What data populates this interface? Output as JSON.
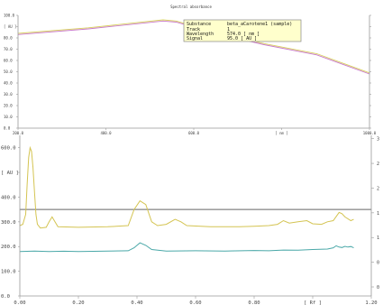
{
  "chart_data": [
    {
      "type": "line",
      "title": "Spectral absorbance",
      "ylabel": "[ AU ]",
      "xlabel": "",
      "xlim": [
        200.0,
        1000.0
      ],
      "ylim": [
        0,
        100
      ],
      "y_ticks": [
        "100.0",
        "[ AU ]",
        "80.0",
        "70.0",
        "60.0",
        "50.0",
        "40.0",
        "30.0",
        "20.0",
        "10.0",
        "0.0"
      ],
      "x_ticks": [
        "200.0",
        "400.0",
        "600.0",
        "[ nm ]",
        "1000.0"
      ],
      "grid": false,
      "series": [
        {
          "values": [
            [
              200,
              83
            ],
            [
              360,
              88
            ],
            [
              530,
              95
            ],
            [
              560,
              94
            ],
            [
              640,
              85
            ],
            [
              760,
              74
            ],
            [
              880,
              65
            ],
            [
              1000,
              48
            ]
          ],
          "color": "#c878c8"
        },
        {
          "values": [
            [
              200,
              84
            ],
            [
              360,
              89
            ],
            [
              530,
              96
            ],
            [
              560,
              95
            ],
            [
              640,
              86
            ],
            [
              760,
              75
            ],
            [
              880,
              66
            ],
            [
              1000,
              49
            ]
          ],
          "color": "#d8d060"
        }
      ],
      "info_box": {
        "rows": [
          {
            "label": "Substance",
            "value": "beta_aCarotene1 (sample)"
          },
          {
            "label": "Track",
            "value": "1"
          },
          {
            "label": "Wavelength",
            "value": "574.0 [ nm ]"
          },
          {
            "label": "Signal",
            "value": "95.0 [ AU ]"
          }
        ]
      }
    },
    {
      "type": "line",
      "title": "",
      "ylabel": "[ AU ]",
      "xlabel": "[ Rf ]",
      "xlim": [
        0.0,
        1.2
      ],
      "ylim": [
        0,
        650
      ],
      "y_ticks": [
        "600.0",
        "[ AU ]",
        "400.0",
        "300.0",
        "200.0",
        "100.0",
        "0.0"
      ],
      "x_ticks": [
        "0.00",
        "0.20",
        "0.40",
        "0.60",
        "0.80",
        "[ Rf ]",
        "1.20"
      ],
      "right_ticks": [
        "3",
        "2",
        "2",
        "1",
        "1",
        "0",
        "0"
      ],
      "baseline_value": 350,
      "baseline_color": "#666666",
      "series": [
        {
          "color": "#d4c452",
          "values": [
            [
              0.0,
              285
            ],
            [
              0.01,
              290
            ],
            [
              0.02,
              330
            ],
            [
              0.025,
              450
            ],
            [
              0.03,
              560
            ],
            [
              0.035,
              600
            ],
            [
              0.04,
              585
            ],
            [
              0.045,
              520
            ],
            [
              0.05,
              420
            ],
            [
              0.055,
              330
            ],
            [
              0.06,
              290
            ],
            [
              0.07,
              275
            ],
            [
              0.09,
              278
            ],
            [
              0.1,
              300
            ],
            [
              0.11,
              320
            ],
            [
              0.12,
              300
            ],
            [
              0.13,
              280
            ],
            [
              0.2,
              278
            ],
            [
              0.3,
              280
            ],
            [
              0.37,
              285
            ],
            [
              0.39,
              350
            ],
            [
              0.41,
              385
            ],
            [
              0.43,
              370
            ],
            [
              0.45,
              300
            ],
            [
              0.47,
              285
            ],
            [
              0.5,
              290
            ],
            [
              0.53,
              310
            ],
            [
              0.55,
              300
            ],
            [
              0.57,
              285
            ],
            [
              0.65,
              280
            ],
            [
              0.75,
              280
            ],
            [
              0.8,
              282
            ],
            [
              0.85,
              285
            ],
            [
              0.88,
              290
            ],
            [
              0.9,
              305
            ],
            [
              0.92,
              295
            ],
            [
              0.95,
              300
            ],
            [
              0.98,
              305
            ],
            [
              1.0,
              292
            ],
            [
              1.03,
              290
            ],
            [
              1.05,
              300
            ],
            [
              1.07,
              305
            ],
            [
              1.09,
              338
            ],
            [
              1.1,
              333
            ],
            [
              1.11,
              320
            ],
            [
              1.13,
              305
            ],
            [
              1.14,
              310
            ]
          ]
        },
        {
          "color": "#4aa8a8",
          "values": [
            [
              0.0,
              180
            ],
            [
              0.05,
              182
            ],
            [
              0.1,
              180
            ],
            [
              0.15,
              181
            ],
            [
              0.2,
              180
            ],
            [
              0.3,
              182
            ],
            [
              0.37,
              183
            ],
            [
              0.39,
              195
            ],
            [
              0.41,
              215
            ],
            [
              0.43,
              205
            ],
            [
              0.45,
              188
            ],
            [
              0.5,
              182
            ],
            [
              0.6,
              183
            ],
            [
              0.7,
              182
            ],
            [
              0.8,
              184
            ],
            [
              0.85,
              183
            ],
            [
              0.9,
              186
            ],
            [
              0.95,
              185
            ],
            [
              1.0,
              188
            ],
            [
              1.05,
              190
            ],
            [
              1.07,
              195
            ],
            [
              1.08,
              203
            ],
            [
              1.09,
              198
            ],
            [
              1.1,
              196
            ],
            [
              1.11,
              201
            ],
            [
              1.12,
              198
            ],
            [
              1.13,
              200
            ],
            [
              1.14,
              195
            ]
          ]
        }
      ]
    }
  ]
}
